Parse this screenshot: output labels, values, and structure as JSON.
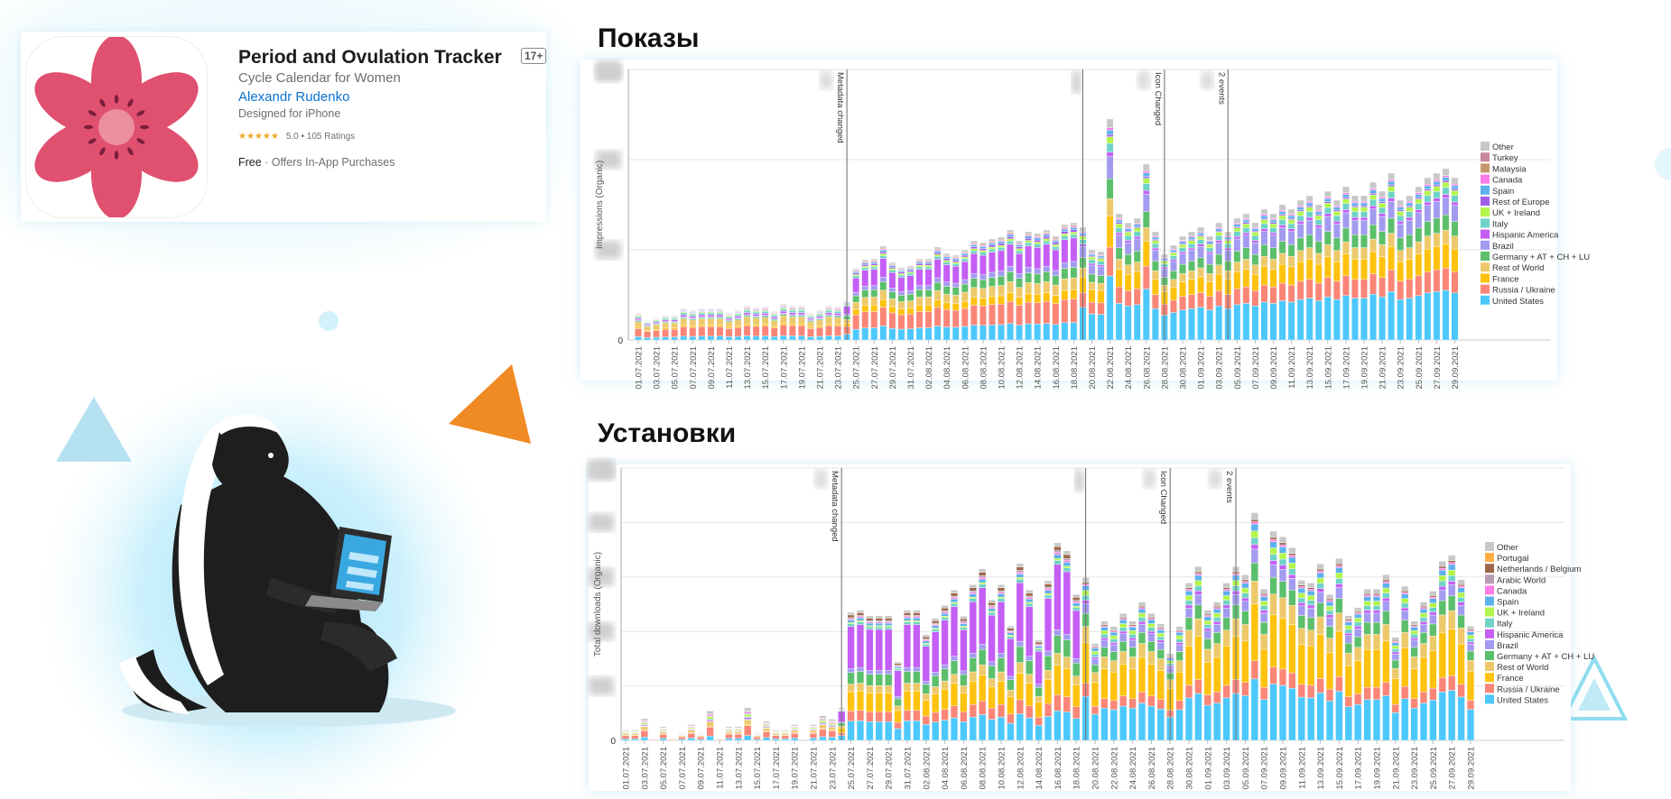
{
  "app_card": {
    "title": "Period and Ovulation Tracker",
    "age_rating": "17+",
    "subtitle": "Cycle Calendar for Women",
    "developer": "Alexandr Rudenko",
    "device": "Designed for iPhone",
    "stars": "★★★★★",
    "rating": "5.0 • 105 Ratings",
    "price": "Free",
    "iap": " · Offers In-App Purchases",
    "icon": "pink-flower-icon"
  },
  "colors": {
    "flower_petal": "#e0506f",
    "flower_center": "#ec8f9c",
    "accent_orange": "#f08a24",
    "accent_light_blue": "#a9dcef",
    "developer_link": "#0a72d0"
  },
  "chart_data": [
    {
      "type": "bar",
      "stacked": true,
      "heading": "Показы",
      "ylabel": "Impressions (Organic)",
      "y_zero_label": "0",
      "ylim": [
        0,
        3
      ],
      "grid": true,
      "legend_position": "right",
      "dates": [
        "01.07.2021",
        "02.07.2021",
        "03.07.2021",
        "04.07.2021",
        "05.07.2021",
        "06.07.2021",
        "07.07.2021",
        "08.07.2021",
        "09.07.2021",
        "10.07.2021",
        "11.07.2021",
        "12.07.2021",
        "13.07.2021",
        "14.07.2021",
        "15.07.2021",
        "16.07.2021",
        "17.07.2021",
        "18.07.2021",
        "19.07.2021",
        "20.07.2021",
        "21.07.2021",
        "22.07.2021",
        "23.07.2021",
        "24.07.2021",
        "25.07.2021",
        "26.07.2021",
        "27.07.2021",
        "28.07.2021",
        "29.07.2021",
        "30.07.2021",
        "31.07.2021",
        "01.08.2021",
        "02.08.2021",
        "03.08.2021",
        "04.08.2021",
        "05.08.2021",
        "06.08.2021",
        "07.08.2021",
        "08.08.2021",
        "09.08.2021",
        "10.08.2021",
        "11.08.2021",
        "12.08.2021",
        "13.08.2021",
        "14.08.2021",
        "15.08.2021",
        "16.08.2021",
        "17.08.2021",
        "18.08.2021",
        "19.08.2021",
        "20.08.2021",
        "21.08.2021",
        "22.08.2021",
        "23.08.2021",
        "24.08.2021",
        "25.08.2021",
        "26.08.2021",
        "27.08.2021",
        "28.08.2021",
        "29.08.2021",
        "30.08.2021",
        "31.08.2021",
        "01.09.2021",
        "02.09.2021",
        "03.09.2021",
        "04.09.2021",
        "05.09.2021",
        "06.09.2021",
        "07.09.2021",
        "08.09.2021",
        "09.09.2021",
        "10.09.2021",
        "11.09.2021",
        "12.09.2021",
        "13.09.2021",
        "14.09.2021",
        "15.09.2021",
        "16.09.2021",
        "17.09.2021",
        "18.09.2021",
        "19.09.2021",
        "20.09.2021",
        "21.09.2021",
        "22.09.2021",
        "23.09.2021",
        "24.09.2021",
        "25.09.2021",
        "26.09.2021",
        "27.09.2021",
        "28.09.2021",
        "29.09.2021"
      ],
      "totals": [
        0.3,
        0.22,
        0.25,
        0.28,
        0.28,
        0.35,
        0.33,
        0.35,
        0.35,
        0.35,
        0.3,
        0.33,
        0.38,
        0.36,
        0.37,
        0.32,
        0.4,
        0.38,
        0.38,
        0.3,
        0.33,
        0.38,
        0.37,
        0.43,
        0.79,
        0.89,
        0.9,
        1.04,
        0.86,
        0.8,
        0.82,
        0.9,
        0.9,
        1.03,
        0.96,
        0.94,
        1.0,
        1.1,
        1.08,
        1.12,
        1.14,
        1.22,
        1.1,
        1.2,
        1.18,
        1.22,
        1.15,
        1.28,
        1.3,
        1.25,
        1.0,
        0.98,
        2.45,
        1.4,
        1.3,
        1.35,
        1.95,
        1.2,
        0.95,
        1.05,
        1.15,
        1.2,
        1.25,
        1.15,
        1.3,
        1.2,
        1.35,
        1.4,
        1.3,
        1.45,
        1.4,
        1.5,
        1.45,
        1.55,
        1.6,
        1.5,
        1.65,
        1.55,
        1.7,
        1.6,
        1.6,
        1.75,
        1.65,
        1.85,
        1.55,
        1.6,
        1.7,
        1.8,
        1.85,
        1.9,
        1.8
      ],
      "series": [
        {
          "name": "United States",
          "color": "#4cc8fc"
        },
        {
          "name": "Russia / Ukraine",
          "color": "#fb8577"
        },
        {
          "name": "France",
          "color": "#ffc20e"
        },
        {
          "name": "Rest of World",
          "color": "#edc96b"
        },
        {
          "name": "Germany + AT + CH + LU",
          "color": "#5cbf6b"
        },
        {
          "name": "Brazil",
          "color": "#a39bf0"
        },
        {
          "name": "Hispanic America",
          "color": "#c45ef5"
        },
        {
          "name": "Italy",
          "color": "#6fd2c7"
        },
        {
          "name": "UK + Ireland",
          "color": "#b2f54b"
        },
        {
          "name": "Rest of Europe",
          "color": "#a25de8"
        },
        {
          "name": "Spain",
          "color": "#5db1eb"
        },
        {
          "name": "Canada",
          "color": "#ff7be6"
        },
        {
          "name": "Malaysia",
          "color": "#c4966b"
        },
        {
          "name": "Turkey",
          "color": "#c9879b"
        },
        {
          "name": "Other",
          "color": "#c8c8c8"
        }
      ],
      "share_periods": [
        {
          "from": "01.07.2021",
          "to": "23.07.2021",
          "shares": [
            0.12,
            0.3,
            0.05,
            0.2,
            0.04,
            0.03,
            0.06,
            0.06,
            0.03,
            0.02,
            0.02,
            0.02,
            0.02,
            0.01,
            0.02
          ]
        },
        {
          "from": "24.07.2021",
          "to": "18.08.2021",
          "shares": [
            0.15,
            0.2,
            0.08,
            0.1,
            0.09,
            0.05,
            0.2,
            0.03,
            0.02,
            0.02,
            0.02,
            0.01,
            0.01,
            0.0,
            0.02
          ]
        },
        {
          "from": "19.08.2021",
          "to": "29.09.2021",
          "shares": [
            0.29,
            0.13,
            0.14,
            0.08,
            0.09,
            0.1,
            0.02,
            0.04,
            0.03,
            0.01,
            0.02,
            0.01,
            0.0,
            0.0,
            0.04
          ]
        }
      ],
      "annotations": [
        {
          "date": "24.07.2021",
          "label": "Metadata changed"
        },
        {
          "date": "19.08.2021",
          "label": ""
        },
        {
          "date": "28.08.2021",
          "label": "Icon Changed"
        },
        {
          "date": "04.09.2021",
          "label": "2 events"
        }
      ]
    },
    {
      "type": "bar",
      "stacked": true,
      "heading": "Установки",
      "ylabel": "Total downloads (Organic)",
      "y_zero_label": "0",
      "ylim": [
        0,
        5
      ],
      "grid": true,
      "legend_position": "right",
      "dates": [
        "01.07.2021",
        "02.07.2021",
        "03.07.2021",
        "04.07.2021",
        "05.07.2021",
        "06.07.2021",
        "07.07.2021",
        "08.07.2021",
        "09.07.2021",
        "10.07.2021",
        "11.07.2021",
        "12.07.2021",
        "13.07.2021",
        "14.07.2021",
        "15.07.2021",
        "16.07.2021",
        "17.07.2021",
        "18.07.2021",
        "19.07.2021",
        "20.07.2021",
        "21.07.2021",
        "22.07.2021",
        "23.07.2021",
        "24.07.2021",
        "25.07.2021",
        "26.07.2021",
        "27.07.2021",
        "28.07.2021",
        "29.07.2021",
        "30.07.2021",
        "31.07.2021",
        "01.08.2021",
        "02.08.2021",
        "03.08.2021",
        "04.08.2021",
        "05.08.2021",
        "06.08.2021",
        "07.08.2021",
        "08.08.2021",
        "09.08.2021",
        "10.08.2021",
        "11.08.2021",
        "12.08.2021",
        "13.08.2021",
        "14.08.2021",
        "15.08.2021",
        "16.08.2021",
        "17.08.2021",
        "18.08.2021",
        "19.08.2021",
        "20.08.2021",
        "21.08.2021",
        "22.08.2021",
        "23.08.2021",
        "24.08.2021",
        "25.08.2021",
        "26.08.2021",
        "27.08.2021",
        "28.08.2021",
        "29.08.2021",
        "30.08.2021",
        "31.08.2021",
        "01.09.2021",
        "02.09.2021",
        "03.09.2021",
        "04.09.2021",
        "05.09.2021",
        "06.09.2021",
        "07.09.2021",
        "08.09.2021",
        "09.09.2021",
        "10.09.2021",
        "11.09.2021",
        "12.09.2021",
        "13.09.2021",
        "14.09.2021",
        "15.09.2021",
        "16.09.2021",
        "17.09.2021",
        "18.09.2021",
        "19.09.2021",
        "20.09.2021",
        "21.09.2021",
        "22.09.2021",
        "23.09.2021",
        "24.09.2021",
        "25.09.2021",
        "26.09.2021",
        "27.09.2021",
        "28.09.2021",
        "29.09.2021"
      ],
      "totals": [
        0.19,
        0.19,
        0.4,
        0.05,
        0.25,
        0.05,
        0.14,
        0.29,
        0.14,
        0.54,
        0.05,
        0.25,
        0.25,
        0.6,
        0.14,
        0.35,
        0.19,
        0.19,
        0.29,
        0,
        0.29,
        0.45,
        0.39,
        0.6,
        2.35,
        2.39,
        2.29,
        2.29,
        2.29,
        1.44,
        2.39,
        2.39,
        1.94,
        2.24,
        2.48,
        2.76,
        2.28,
        2.86,
        3.15,
        2.58,
        2.86,
        2.1,
        3.25,
        2.76,
        1.84,
        2.93,
        3.63,
        3.48,
        2.68,
        2.99,
        1.78,
        2.19,
        2.09,
        2.33,
        2.19,
        2.54,
        2.33,
        2.14,
        1.59,
        2.09,
        2.89,
        3.19,
        2.39,
        2.54,
        2.89,
        3.19,
        3.04,
        4.18,
        2.78,
        3.84,
        3.74,
        3.54,
        2.94,
        2.89,
        3.24,
        2.68,
        3.34,
        2.29,
        2.44,
        2.78,
        2.78,
        3.04,
        1.89,
        2.83,
        2.19,
        2.54,
        2.74,
        3.29,
        3.4,
        2.95,
        2.1
      ],
      "series": [
        {
          "name": "United States",
          "color": "#4cc8fc"
        },
        {
          "name": "Russia / Ukraine",
          "color": "#fb8577"
        },
        {
          "name": "France",
          "color": "#ffc20e"
        },
        {
          "name": "Rest of World",
          "color": "#edc96b"
        },
        {
          "name": "Germany + AT + CH + LU",
          "color": "#5cbf6b"
        },
        {
          "name": "Brazil",
          "color": "#a39bf0"
        },
        {
          "name": "Hispanic America",
          "color": "#c45ef5"
        },
        {
          "name": "Italy",
          "color": "#6fd2c7"
        },
        {
          "name": "UK + Ireland",
          "color": "#b2f54b"
        },
        {
          "name": "Spain",
          "color": "#5db1eb"
        },
        {
          "name": "Canada",
          "color": "#ff7be6"
        },
        {
          "name": "Arabic World",
          "color": "#b89cb6"
        },
        {
          "name": "Netherlands / Belgium",
          "color": "#9e6749"
        },
        {
          "name": "Portugal",
          "color": "#ffad42"
        },
        {
          "name": "Other",
          "color": "#c8c8c8"
        }
      ],
      "share_periods": [
        {
          "from": "01.07.2021",
          "to": "23.07.2021",
          "shares": [
            0.15,
            0.3,
            0.03,
            0.15,
            0.02,
            0.0,
            0.05,
            0.03,
            0.07,
            0.02,
            0.04,
            0.03,
            0.02,
            0.0,
            0.09
          ]
        },
        {
          "from": "24.07.2021",
          "to": "18.08.2021",
          "shares": [
            0.15,
            0.08,
            0.15,
            0.06,
            0.09,
            0.03,
            0.33,
            0.02,
            0.01,
            0.02,
            0.01,
            0.01,
            0.02,
            0.0,
            0.02
          ]
        },
        {
          "from": "19.08.2021",
          "to": "29.09.2021",
          "shares": [
            0.27,
            0.08,
            0.25,
            0.1,
            0.08,
            0.06,
            0.02,
            0.03,
            0.03,
            0.03,
            0.01,
            0.0,
            0.01,
            0.0,
            0.03
          ]
        }
      ],
      "annotations": [
        {
          "date": "24.07.2021",
          "label": "Metadata changed"
        },
        {
          "date": "19.08.2021",
          "label": ""
        },
        {
          "date": "28.08.2021",
          "label": "Icon Changed"
        },
        {
          "date": "04.09.2021",
          "label": "2 events"
        }
      ]
    }
  ]
}
